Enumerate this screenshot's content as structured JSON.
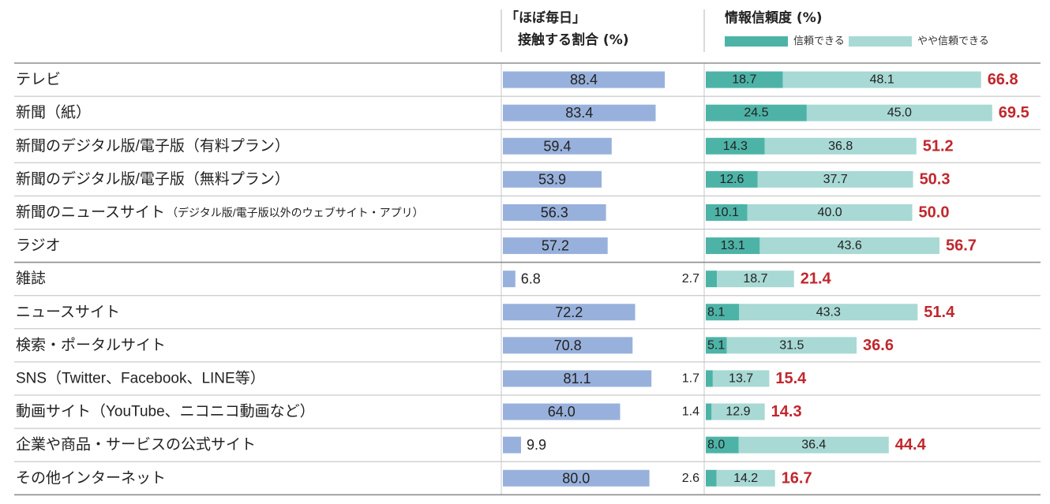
{
  "headers": {
    "contact_line1": "「ほぼ毎日」",
    "contact_line2": "接触する割合 (%)",
    "trust_title": "情報信頼度 (%)"
  },
  "legend": {
    "trust": "信頼できる",
    "somewhat": "やや信頼できる"
  },
  "colors": {
    "contact_bar": "#98b1dc",
    "trust": "#4db3a7",
    "somewhat": "#a8d9d4",
    "total_label": "#c0272d",
    "grid": "#9a9a9a"
  },
  "chart_data": [
    {
      "type": "bar",
      "title": "「ほぼ毎日」接触する割合 (%)",
      "orientation": "horizontal",
      "categories": [
        "テレビ",
        "新聞（紙）",
        "新聞のデジタル版/電子版（有料プラン）",
        "新聞のデジタル版/電子版（無料プラン）",
        "新聞のニュースサイト",
        "ラジオ",
        "雑誌",
        "ニュースサイト",
        "検索・ポータルサイト",
        "SNS（Twitter、Facebook、LINE等）",
        "動画サイト（YouTube、ニコニコ動画など）",
        "企業や商品・サービスの公式サイト",
        "その他インターネット"
      ],
      "values": [
        88.4,
        83.4,
        59.4,
        53.9,
        56.3,
        57.2,
        6.8,
        72.2,
        70.8,
        81.1,
        64.0,
        9.9,
        80.0
      ],
      "value_labels": [
        "88.4",
        "83.4",
        "59.4",
        "53.9",
        "56.3",
        "57.2",
        "6.8",
        "72.2",
        "70.8",
        "81.1",
        "64.0",
        "9.9",
        "80.0"
      ],
      "xlim": [
        0,
        100
      ]
    },
    {
      "type": "bar",
      "title": "情報信頼度 (%)",
      "orientation": "horizontal",
      "stacked": true,
      "series": [
        {
          "name": "信頼できる",
          "values": [
            18.7,
            24.5,
            14.3,
            12.6,
            10.1,
            13.1,
            2.7,
            8.1,
            5.1,
            1.7,
            1.4,
            8.0,
            2.6
          ],
          "value_labels": [
            "18.7",
            "24.5",
            "14.3",
            "12.6",
            "10.1",
            "13.1",
            "2.7",
            "8.1",
            "5.1",
            "1.7",
            "1.4",
            "8.0",
            "2.6"
          ]
        },
        {
          "name": "やや信頼できる",
          "values": [
            48.1,
            45.0,
            36.8,
            37.7,
            40.0,
            43.6,
            18.7,
            43.3,
            31.5,
            13.7,
            12.9,
            36.4,
            14.2
          ],
          "value_labels": [
            "48.1",
            "45.0",
            "36.8",
            "37.7",
            "40.0",
            "43.6",
            "18.7",
            "43.3",
            "31.5",
            "13.7",
            "12.9",
            "36.4",
            "14.2"
          ]
        }
      ],
      "totals": [
        66.8,
        69.5,
        51.2,
        50.3,
        50.0,
        56.7,
        21.4,
        51.4,
        36.6,
        15.4,
        14.3,
        44.4,
        16.7
      ],
      "total_labels": [
        "66.8",
        "69.5",
        "51.2",
        "50.3",
        "50.0",
        "56.7",
        "21.4",
        "51.4",
        "36.6",
        "15.4",
        "14.3",
        "44.4",
        "16.7"
      ],
      "xlim": [
        0,
        100
      ]
    }
  ],
  "rows": [
    {
      "label": "テレビ",
      "note": ""
    },
    {
      "label": "新聞（紙）",
      "note": ""
    },
    {
      "label": "新聞のデジタル版/電子版（有料プラン）",
      "note": ""
    },
    {
      "label": "新聞のデジタル版/電子版（無料プラン）",
      "note": ""
    },
    {
      "label": "新聞のニュースサイト",
      "note": "（デジタル版/電子版以外のウェブサイト・アプリ）"
    },
    {
      "label": "ラジオ",
      "note": ""
    },
    {
      "label": "雑誌",
      "note": ""
    },
    {
      "label": "ニュースサイト",
      "note": ""
    },
    {
      "label": "検索・ポータルサイト",
      "note": ""
    },
    {
      "label": "SNS（Twitter、Facebook、LINE等）",
      "note": ""
    },
    {
      "label": "動画サイト（YouTube、ニコニコ動画など）",
      "note": ""
    },
    {
      "label": "企業や商品・サービスの公式サイト",
      "note": ""
    },
    {
      "label": "その他インターネット",
      "note": ""
    }
  ]
}
